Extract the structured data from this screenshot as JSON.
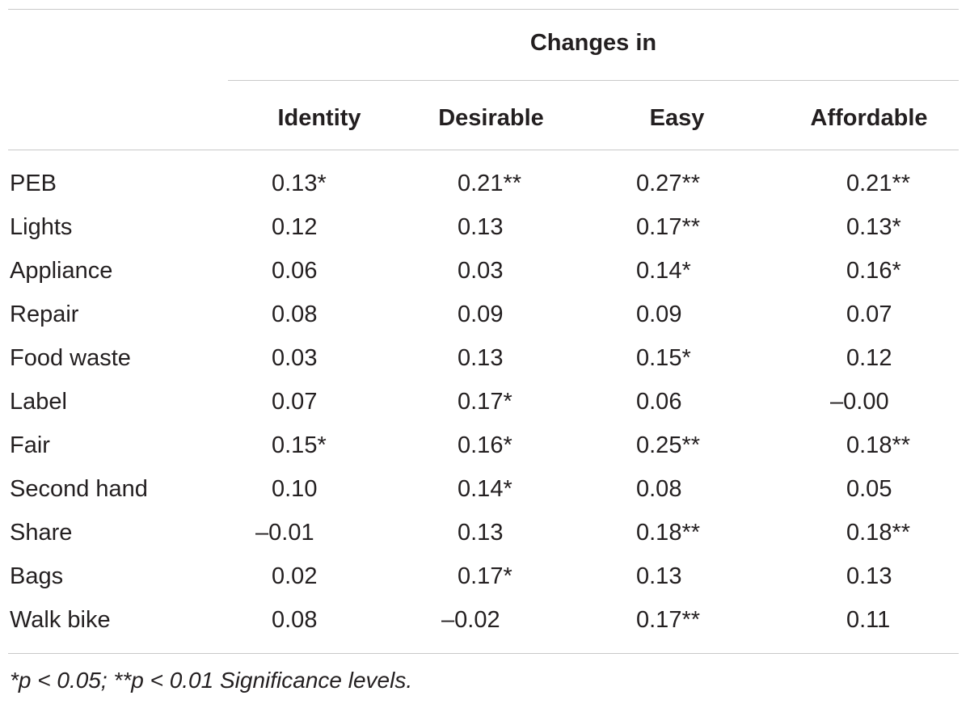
{
  "table": {
    "group_header": "Changes in",
    "columns": [
      "Identity",
      "Desirable",
      "Easy",
      "Affordable"
    ],
    "rows": [
      {
        "label": "PEB",
        "values": [
          "0.13*",
          "0.21**",
          "0.27**",
          "0.21**"
        ]
      },
      {
        "label": "Lights",
        "values": [
          "0.12",
          "0.13",
          "0.17**",
          "0.13*"
        ]
      },
      {
        "label": "Appliance",
        "values": [
          "0.06",
          "0.03",
          "0.14*",
          "0.16*"
        ]
      },
      {
        "label": "Repair",
        "values": [
          "0.08",
          "0.09",
          "0.09",
          "0.07"
        ]
      },
      {
        "label": "Food waste",
        "values": [
          "0.03",
          "0.13",
          "0.15*",
          "0.12"
        ]
      },
      {
        "label": "Label",
        "values": [
          "0.07",
          "0.17*",
          "0.06",
          "–0.00"
        ]
      },
      {
        "label": "Fair",
        "values": [
          "0.15*",
          "0.16*",
          "0.25**",
          "0.18**"
        ]
      },
      {
        "label": "Second hand",
        "values": [
          "0.10",
          "0.14*",
          "0.08",
          "0.05"
        ]
      },
      {
        "label": "Share",
        "values": [
          "–0.01",
          "0.13",
          "0.18**",
          "0.18**"
        ]
      },
      {
        "label": "Bags",
        "values": [
          "0.02",
          "0.17*",
          "0.13",
          "0.13"
        ]
      },
      {
        "label": "Walk bike",
        "values": [
          "0.08",
          "–0.02",
          "0.17**",
          "0.11"
        ]
      }
    ],
    "footnote": "*p < 0.05; **p < 0.01 Significance levels."
  }
}
